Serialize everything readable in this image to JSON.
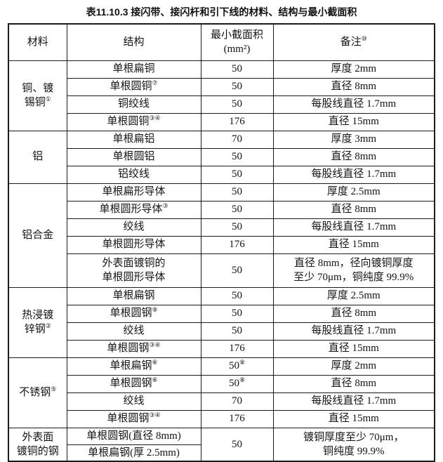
{
  "page": {
    "title": "表11.10.3 接闪带、接闪杆和引下线的材料、结构与最小截面积"
  },
  "table": {
    "headers": {
      "material": "材料",
      "structure": "结构",
      "min_area": "最小截面积",
      "min_area_unit": "(mm²)",
      "remarks": "备注",
      "remarks_sup": "⑩"
    },
    "groups": [
      {
        "material": "铜、镀\n锡铜",
        "material_sup": "①",
        "rows": [
          {
            "structure": "单根扁铜",
            "structure_sup": "",
            "area": "50",
            "area_sup": "",
            "remark": "厚度 2mm"
          },
          {
            "structure": "单根圆铜",
            "structure_sup": "⑦",
            "area": "50",
            "area_sup": "",
            "remark": "直径 8mm"
          },
          {
            "structure": "铜绞线",
            "structure_sup": "",
            "area": "50",
            "area_sup": "",
            "remark": "每股线直径 1.7mm"
          },
          {
            "structure": "单根圆铜",
            "structure_sup": "③④",
            "area": "176",
            "area_sup": "",
            "remark": "直径 15mm"
          }
        ]
      },
      {
        "material": "铝",
        "material_sup": "",
        "rows": [
          {
            "structure": "单根扁铝",
            "structure_sup": "",
            "area": "70",
            "area_sup": "",
            "remark": "厚度 3mm"
          },
          {
            "structure": "单根圆铝",
            "structure_sup": "",
            "area": "50",
            "area_sup": "",
            "remark": "直径 8mm"
          },
          {
            "structure": "铝绞线",
            "structure_sup": "",
            "area": "50",
            "area_sup": "",
            "remark": "每股线直径 1.7mm"
          }
        ]
      },
      {
        "material": "铝合金",
        "material_sup": "",
        "rows": [
          {
            "structure": "单根扁形导体",
            "structure_sup": "",
            "area": "50",
            "area_sup": "",
            "remark": "厚度 2.5mm"
          },
          {
            "structure": "单根圆形导体",
            "structure_sup": "③",
            "area": "50",
            "area_sup": "",
            "remark": "直径 8mm"
          },
          {
            "structure": "绞线",
            "structure_sup": "",
            "area": "50",
            "area_sup": "",
            "remark": "每股线直径 1.7mm"
          },
          {
            "structure": "单根圆形导体",
            "structure_sup": "",
            "area": "176",
            "area_sup": "",
            "remark": "直径 15mm"
          },
          {
            "structure": "外表面镀铜的\n单根圆形导体",
            "structure_sup": "",
            "area": "50",
            "area_sup": "",
            "remark": "直径 8mm，径向镀铜厚度\n至少 70μm，铜纯度 99.9%",
            "tall": true
          }
        ]
      },
      {
        "material": "热浸镀\n锌钢",
        "material_sup": "②",
        "rows": [
          {
            "structure": "单根扁钢",
            "structure_sup": "",
            "area": "50",
            "area_sup": "",
            "remark": "厚度 2.5mm"
          },
          {
            "structure": "单根圆钢",
            "structure_sup": "⑨",
            "area": "50",
            "area_sup": "",
            "remark": "直径 8mm"
          },
          {
            "structure": "绞线",
            "structure_sup": "",
            "area": "50",
            "area_sup": "",
            "remark": "每股线直径 1.7mm"
          },
          {
            "structure": "单根圆钢",
            "structure_sup": "③④",
            "area": "176",
            "area_sup": "",
            "remark": "直径 15mm"
          }
        ]
      },
      {
        "material": "不锈钢",
        "material_sup": "⑤",
        "rows": [
          {
            "structure": "单根扁钢",
            "structure_sup": "⑥",
            "area": "50",
            "area_sup": "⑧",
            "remark": "厚度 2mm"
          },
          {
            "structure": "单根圆钢",
            "structure_sup": "⑥",
            "area": "50",
            "area_sup": "⑧",
            "remark": "直径 8mm"
          },
          {
            "structure": "绞线",
            "structure_sup": "",
            "area": "70",
            "area_sup": "",
            "remark": "每股线直径 1.7mm"
          },
          {
            "structure": "单根圆钢",
            "structure_sup": "③④",
            "area": "176",
            "area_sup": "",
            "remark": "直径 15mm"
          }
        ]
      },
      {
        "material": "外表面\n镀铜的钢",
        "material_sup": "",
        "merged": true,
        "shared_area": "50",
        "shared_area_sup": "",
        "shared_remark": "镀铜厚度至少 70μm，\n铜纯度 99.9%",
        "rows": [
          {
            "structure": "单根圆钢(直径 8mm)",
            "structure_sup": ""
          },
          {
            "structure": "单根扁钢(厚 2.5mm)",
            "structure_sup": ""
          }
        ]
      }
    ]
  }
}
